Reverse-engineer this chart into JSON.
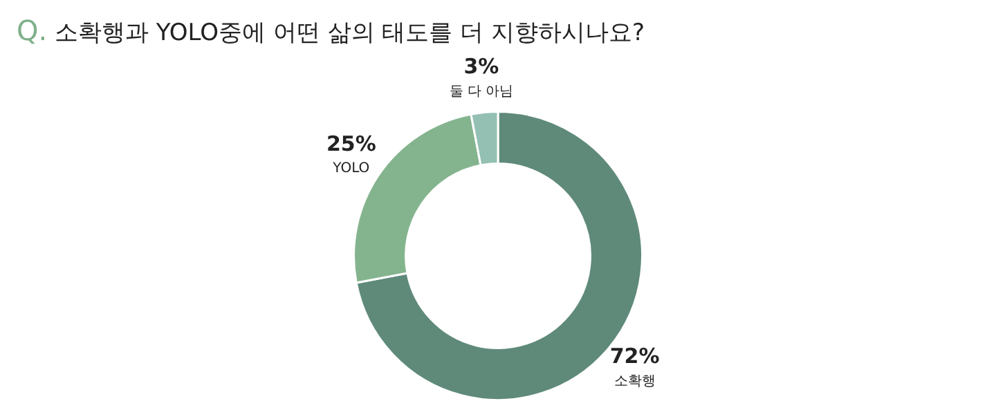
{
  "chart_data": {
    "type": "donut",
    "title": "Q. 소확행과 YOLO중에 어떤 삶의 태도를 더 지향하시나요?",
    "categories": [
      "소확행",
      "YOLO",
      "둘 다 아님"
    ],
    "values": [
      72,
      25,
      3
    ],
    "colors": [
      "#5f8a7a",
      "#84b48e",
      "#93c0b2"
    ],
    "value_labels": [
      "72%",
      "25%",
      "3%"
    ],
    "legend": false
  }
}
